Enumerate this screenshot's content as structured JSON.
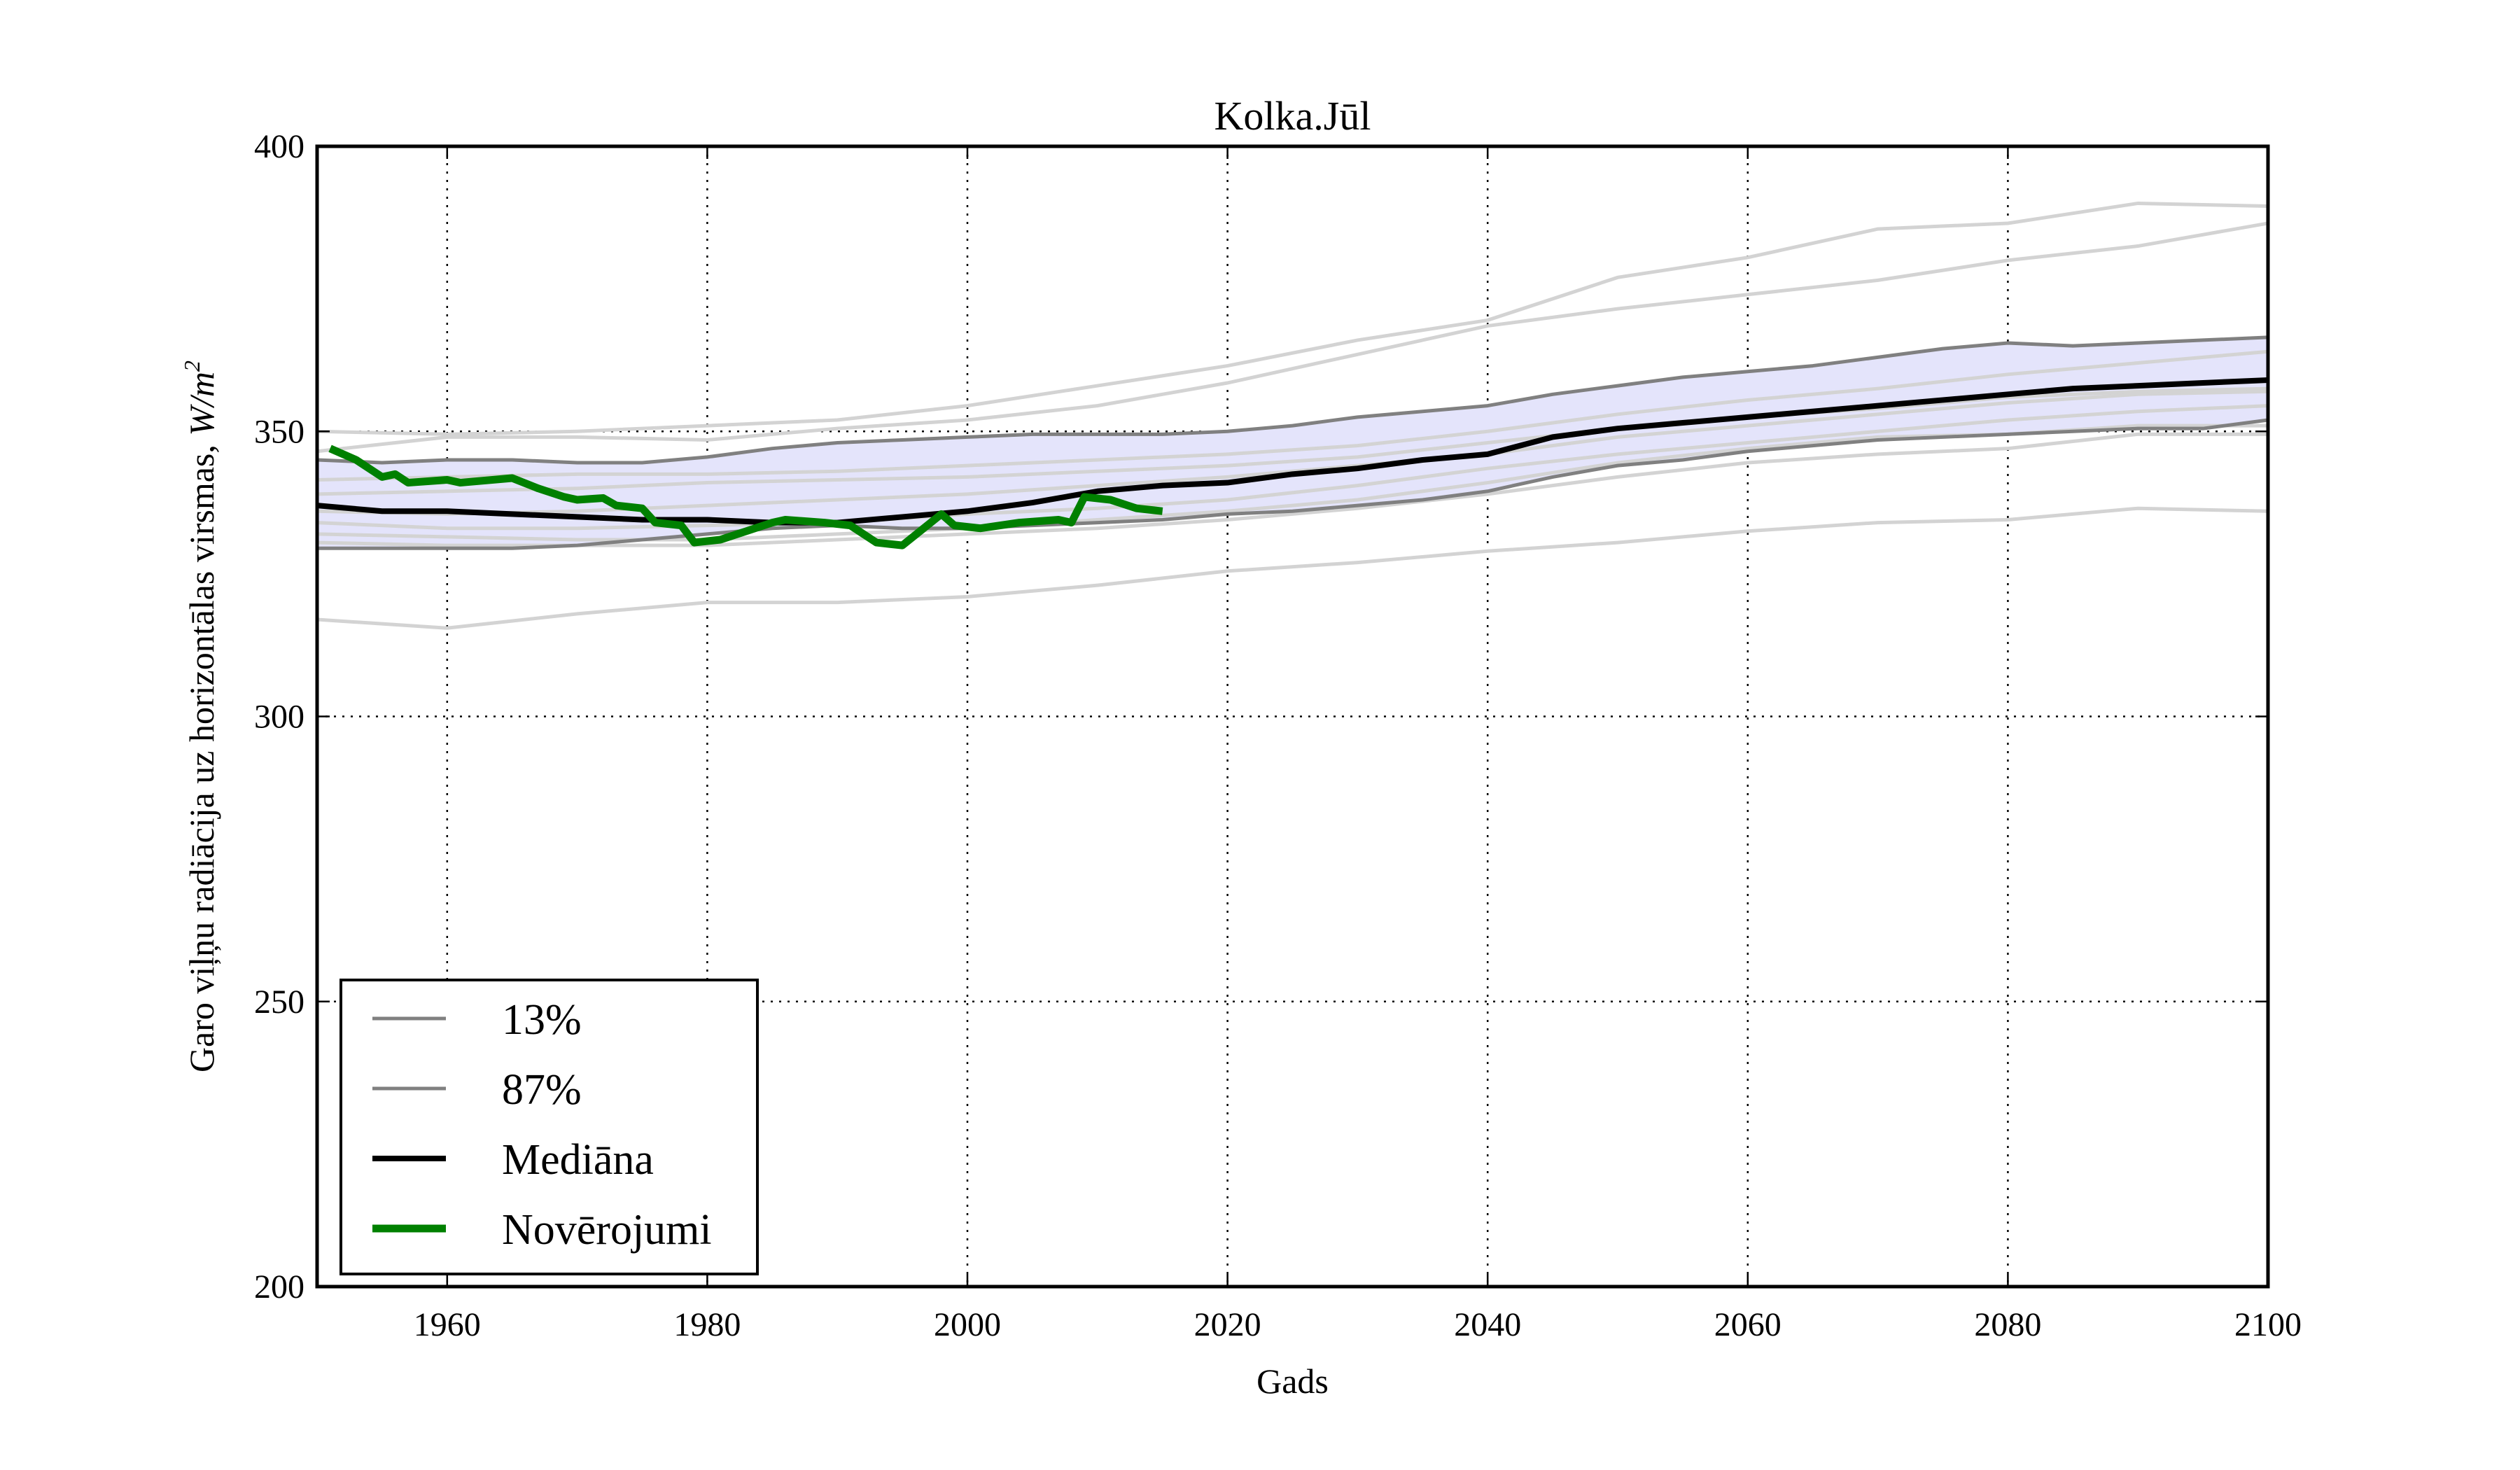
{
  "chart_data": {
    "type": "line",
    "title": "Kolka.Jūl",
    "xlabel": "Gads",
    "ylabel": "Garo viļņu radiācija uz horizontālas virsmas, W/m²",
    "ylabel_main": "Garo viļņu radiācija uz horizontālas virsmas, ",
    "ylabel_unit": "W/m",
    "ylabel_sup": "2",
    "xlim": [
      1950,
      2100
    ],
    "ylim": [
      200,
      400
    ],
    "xticks": [
      1960,
      1980,
      2000,
      2020,
      2040,
      2060,
      2080,
      2100
    ],
    "yticks": [
      200,
      250,
      300,
      350,
      400
    ],
    "grid": true,
    "legend_position": "lower-left",
    "colors": {
      "band_fill": "#e4e4fb",
      "percentile": "#808080",
      "median": "#000000",
      "observations": "#008000",
      "ensemble": "#d3d3d3"
    },
    "legend": [
      {
        "label": "13%",
        "key": "p13"
      },
      {
        "label": "87%",
        "key": "p87"
      },
      {
        "label": "Mediāna",
        "key": "median"
      },
      {
        "label": "Novērojumi",
        "key": "obs"
      }
    ],
    "series": [
      {
        "name": "13%",
        "key": "p13",
        "x": [
          1950,
          1955,
          1960,
          1965,
          1970,
          1975,
          1980,
          1985,
          1990,
          1995,
          2000,
          2005,
          2010,
          2015,
          2020,
          2025,
          2030,
          2035,
          2040,
          2045,
          2050,
          2055,
          2060,
          2065,
          2070,
          2075,
          2080,
          2085,
          2090,
          2095,
          2100
        ],
        "y": [
          329.5,
          329.5,
          329.5,
          329.5,
          330,
          331,
          332,
          333,
          333.5,
          333,
          333,
          333.5,
          334,
          334.5,
          335.5,
          336,
          337,
          338,
          339.5,
          342,
          344,
          345,
          346.5,
          347.5,
          348.5,
          349,
          349.5,
          350,
          350.5,
          350.5,
          352
        ]
      },
      {
        "name": "87%",
        "key": "p87",
        "x": [
          1950,
          1955,
          1960,
          1965,
          1970,
          1975,
          1980,
          1985,
          1990,
          1995,
          2000,
          2005,
          2010,
          2015,
          2020,
          2025,
          2030,
          2035,
          2040,
          2045,
          2050,
          2055,
          2060,
          2065,
          2070,
          2075,
          2080,
          2085,
          2090,
          2095,
          2100
        ],
        "y": [
          345,
          344.5,
          345,
          345,
          344.5,
          344.5,
          345.5,
          347,
          348,
          348.5,
          349,
          349.5,
          349.5,
          349.5,
          350,
          351,
          352.5,
          353.5,
          354.5,
          356.5,
          358,
          359.5,
          360.5,
          361.5,
          363,
          364.5,
          365.5,
          365,
          365.5,
          366,
          366.5
        ]
      },
      {
        "name": "Mediāna",
        "key": "median",
        "x": [
          1950,
          1955,
          1960,
          1965,
          1970,
          1975,
          1980,
          1985,
          1990,
          1995,
          2000,
          2005,
          2010,
          2015,
          2020,
          2025,
          2030,
          2035,
          2040,
          2045,
          2050,
          2055,
          2060,
          2065,
          2070,
          2075,
          2080,
          2085,
          2090,
          2095,
          2100
        ],
        "y": [
          337,
          336,
          336,
          335.5,
          335,
          334.5,
          334.5,
          334,
          334,
          335,
          336,
          337.5,
          339.5,
          340.5,
          341,
          342.5,
          343.5,
          345,
          346,
          349,
          350.5,
          351.5,
          352.5,
          353.5,
          354.5,
          355.5,
          356.5,
          357.5,
          358,
          358.5,
          359
        ]
      },
      {
        "name": "Novērojumi",
        "key": "obs",
        "x": [
          1951,
          1953,
          1955,
          1956,
          1957,
          1960,
          1961,
          1965,
          1967,
          1969,
          1970,
          1972,
          1973,
          1975,
          1976,
          1978,
          1979,
          1981,
          1983,
          1985,
          1986,
          1989,
          1991,
          1993,
          1995,
          1998,
          1999,
          2001,
          2004,
          2007,
          2008,
          2009,
          2011,
          2013,
          2015
        ],
        "y": [
          347,
          345,
          342,
          342.5,
          341,
          341.5,
          341,
          341.8,
          340,
          338.5,
          338,
          338.3,
          337,
          336.5,
          334,
          333.5,
          330.5,
          331,
          332.5,
          334,
          334.5,
          334,
          333.5,
          330.5,
          330,
          335.5,
          333.5,
          333,
          334,
          334.5,
          334,
          338.5,
          338,
          336.5,
          336
        ]
      }
    ],
    "ensemble_members": [
      {
        "x": [
          1950,
          1960,
          1970,
          1980,
          1990,
          2000,
          2010,
          2020,
          2030,
          2040,
          2050,
          2060,
          2070,
          2080,
          2090,
          2100
        ],
        "y": [
          350,
          349.5,
          350,
          351,
          352,
          354.5,
          358,
          361.5,
          366,
          369.5,
          377,
          380.5,
          385.5,
          386.5,
          390,
          389.5
        ]
      },
      {
        "x": [
          1950,
          1960,
          1970,
          1980,
          1990,
          2000,
          2010,
          2020,
          2030,
          2040,
          2050,
          2060,
          2070,
          2080,
          2090,
          2100
        ],
        "y": [
          346.5,
          349,
          349,
          348.5,
          350.5,
          352,
          354.5,
          358.5,
          363.5,
          368.5,
          371.5,
          374,
          376.5,
          380,
          382.5,
          386.5
        ]
      },
      {
        "x": [
          1950,
          1960,
          1970,
          1980,
          1990,
          2000,
          2010,
          2020,
          2030,
          2040,
          2050,
          2060,
          2070,
          2080,
          2090,
          2100
        ],
        "y": [
          317,
          315.5,
          318,
          320,
          320,
          321,
          323,
          325.5,
          327,
          329,
          330.5,
          332.5,
          334,
          334.5,
          336.5,
          336
        ]
      },
      {
        "x": [
          1950,
          1960,
          1970,
          1980,
          1990,
          2000,
          2010,
          2020,
          2030,
          2040,
          2050,
          2060,
          2070,
          2080,
          2090,
          2100
        ],
        "y": [
          341.5,
          342,
          342.5,
          342.5,
          343,
          344,
          345,
          346,
          347.5,
          350,
          353,
          355.5,
          357.5,
          360,
          362,
          364
        ]
      },
      {
        "x": [
          1950,
          1960,
          1970,
          1980,
          1990,
          2000,
          2010,
          2020,
          2030,
          2040,
          2050,
          2060,
          2070,
          2080,
          2090,
          2100
        ],
        "y": [
          339,
          339.5,
          340,
          341,
          341.5,
          342,
          343,
          344,
          345.5,
          348,
          350.5,
          352.5,
          354,
          356,
          357,
          357.5
        ]
      },
      {
        "x": [
          1950,
          1960,
          1970,
          1980,
          1990,
          2000,
          2010,
          2020,
          2030,
          2040,
          2050,
          2060,
          2070,
          2080,
          2090,
          2100
        ],
        "y": [
          334,
          333,
          333,
          333.5,
          334,
          335.5,
          336.5,
          338,
          340.5,
          343.5,
          346,
          348,
          350,
          352,
          353.5,
          354.5
        ]
      },
      {
        "x": [
          1950,
          1960,
          1970,
          1980,
          1990,
          2000,
          2010,
          2020,
          2030,
          2040,
          2050,
          2060,
          2070,
          2080,
          2090,
          2100
        ],
        "y": [
          332,
          331.5,
          331,
          331,
          332,
          333,
          334.5,
          336,
          338,
          341,
          344.5,
          347,
          349,
          349.5,
          351,
          351
        ]
      },
      {
        "x": [
          1950,
          1960,
          1970,
          1980,
          1990,
          2000,
          2010,
          2020,
          2030,
          2040,
          2050,
          2060,
          2070,
          2080,
          2090,
          2100
        ],
        "y": [
          330.5,
          330,
          330,
          330,
          331,
          332,
          333,
          334.5,
          336.5,
          339,
          342,
          344.5,
          346,
          347,
          349.5,
          349.5
        ]
      },
      {
        "x": [
          1950,
          1960,
          1970,
          1980,
          1990,
          2000,
          2010,
          2020,
          2030,
          2040,
          2050,
          2060,
          2070,
          2080,
          2090,
          2100
        ],
        "y": [
          336,
          335.5,
          336,
          337,
          338,
          339,
          340.5,
          342,
          344,
          346,
          349,
          351,
          353,
          355,
          356.5,
          357
        ]
      }
    ]
  }
}
